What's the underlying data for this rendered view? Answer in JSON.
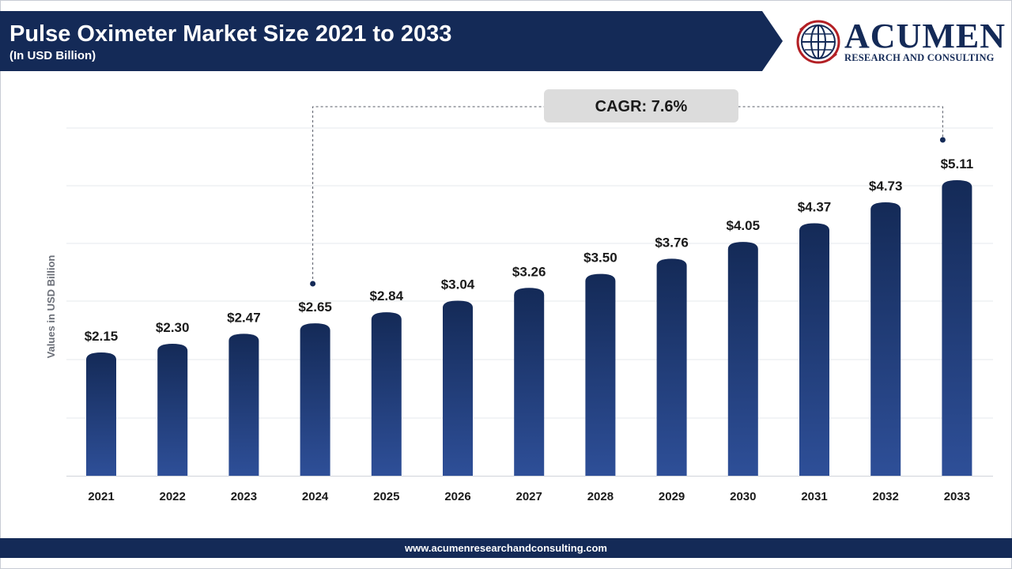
{
  "header": {
    "title": "Pulse Oximeter Market Size 2021 to 2033",
    "subtitle": "(In USD Billion)"
  },
  "logo": {
    "name": "ACUMEN",
    "tagline": "RESEARCH AND CONSULTING",
    "icon": "globe-icon"
  },
  "footer": {
    "url": "www.acumenresearchandconsulting.com"
  },
  "colors": {
    "bar_top": "#142a57",
    "bar_bottom": "#2e4f98",
    "header_bg": "#142a57",
    "cagr_box": "#dcdcdc"
  },
  "chart_data": {
    "type": "bar",
    "categories": [
      "2021",
      "2022",
      "2023",
      "2024",
      "2025",
      "2026",
      "2027",
      "2028",
      "2029",
      "2030",
      "2031",
      "2032",
      "2033"
    ],
    "values": [
      2.15,
      2.3,
      2.47,
      2.65,
      2.84,
      3.04,
      3.26,
      3.5,
      3.76,
      4.05,
      4.37,
      4.73,
      5.11
    ],
    "data_labels": [
      "$2.15",
      "$2.30",
      "$2.47",
      "$2.65",
      "$2.84",
      "$3.04",
      "$3.26",
      "$3.50",
      "$3.76",
      "$4.05",
      "$4.37",
      "$4.73",
      "$5.11"
    ],
    "ylabel": "Values in USD Billion",
    "xlabel": "",
    "grid": true,
    "annotation": {
      "text": "CAGR: 7.6%",
      "from_category": "2024",
      "to_category": "2033"
    }
  }
}
